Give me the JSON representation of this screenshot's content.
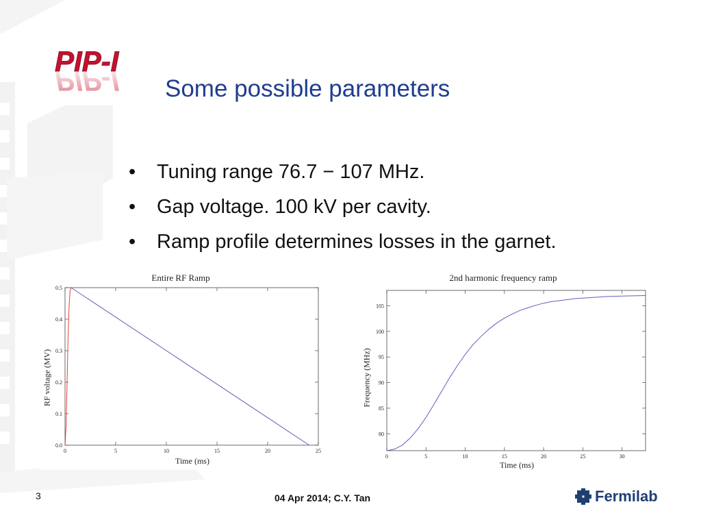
{
  "slide": {
    "logo_text": "PIP-I",
    "title": "Some possible parameters",
    "bullets": [
      "Tuning range 76.7 − 107 MHz.",
      "Gap voltage. 100 kV per cavity.",
      "Ramp profile determines losses in the garnet."
    ],
    "page_number": "3",
    "footer": "04 Apr 2014; C.Y. Tan",
    "footer_logo": "Fermilab",
    "colors": {
      "title": "#1f3d8f",
      "logo": "#c8102e",
      "fermilab": "#1f3f73"
    }
  },
  "chart_data": [
    {
      "type": "line",
      "title": "Entire RF Ramp",
      "xlabel": "Time (ms)",
      "ylabel": "RF voltage (MV)",
      "xlim": [
        0,
        25
      ],
      "ylim": [
        0,
        0.5
      ],
      "xticks": [
        0,
        5,
        10,
        15,
        20,
        25
      ],
      "yticks": [
        0.0,
        0.1,
        0.2,
        0.3,
        0.4,
        0.5
      ],
      "ytick_labels": [
        "0.0",
        "0.1",
        "0.2",
        "0.3",
        "0.4",
        "0.5"
      ],
      "grid": false,
      "series": [
        {
          "color": "#e0413a",
          "x": [
            0,
            0.1,
            0.2,
            0.3,
            0.4,
            0.5,
            0.6
          ],
          "y": [
            0.0,
            0.06,
            0.2,
            0.34,
            0.44,
            0.49,
            0.5
          ]
        },
        {
          "color": "#5b5fbf",
          "x": [
            0.6,
            24.1
          ],
          "y": [
            0.5,
            0.0
          ]
        }
      ]
    },
    {
      "type": "line",
      "title": "2nd harmonic frequency ramp",
      "xlabel": "Time (ms)",
      "ylabel": "Frequency (MHz)",
      "xlim": [
        0,
        33
      ],
      "ylim": [
        76.7,
        108
      ],
      "xticks": [
        0,
        5,
        10,
        15,
        20,
        25,
        30
      ],
      "yticks": [
        80,
        85,
        90,
        95,
        100,
        105
      ],
      "ytick_labels": [
        "80",
        "85",
        "90",
        "95",
        "100",
        "105"
      ],
      "grid": false,
      "series": [
        {
          "color": "#5b5fbf",
          "x": [
            0,
            1,
            2,
            3,
            4,
            5,
            6,
            7,
            8,
            9,
            10,
            11,
            12,
            13,
            14,
            15,
            16,
            17,
            18,
            19,
            20,
            21,
            22,
            23,
            24,
            25,
            26,
            27,
            28,
            29,
            30,
            31,
            32,
            33
          ],
          "y": [
            76.7,
            77.0,
            77.8,
            79.2,
            81.0,
            83.2,
            85.7,
            88.3,
            90.9,
            93.3,
            95.5,
            97.4,
            99.0,
            100.4,
            101.6,
            102.6,
            103.4,
            104.1,
            104.6,
            105.1,
            105.5,
            105.8,
            106.0,
            106.2,
            106.4,
            106.5,
            106.6,
            106.7,
            106.8,
            106.85,
            106.9,
            106.93,
            106.96,
            107.0
          ]
        }
      ]
    }
  ]
}
